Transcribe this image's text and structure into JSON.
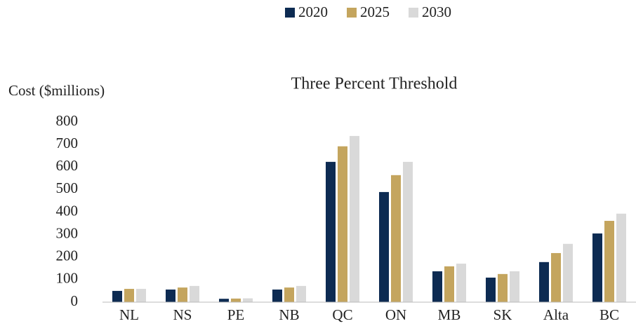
{
  "chart_data": {
    "type": "bar",
    "title": "Three Percent Threshold",
    "y_label": "Cost ($millions)",
    "categories": [
      "NL",
      "NS",
      "PE",
      "NB",
      "QC",
      "ON",
      "MB",
      "SK",
      "Alta",
      "BC"
    ],
    "series": [
      {
        "name": "2020",
        "color": "#0d2b52",
        "values": [
          50,
          56,
          15,
          56,
          623,
          489,
          137,
          109,
          178,
          305
        ]
      },
      {
        "name": "2025",
        "color": "#c4a55e",
        "values": [
          59,
          65,
          16,
          65,
          692,
          564,
          159,
          125,
          218,
          361
        ]
      },
      {
        "name": "2030",
        "color": "#d9d9d9",
        "values": [
          59,
          72,
          17,
          72,
          738,
          623,
          171,
          137,
          259,
          393
        ]
      }
    ],
    "ylim": [
      0,
      800
    ],
    "yticks": [
      0,
      100,
      200,
      300,
      400,
      500,
      600,
      700,
      800
    ],
    "grid": false,
    "legend": "top"
  }
}
